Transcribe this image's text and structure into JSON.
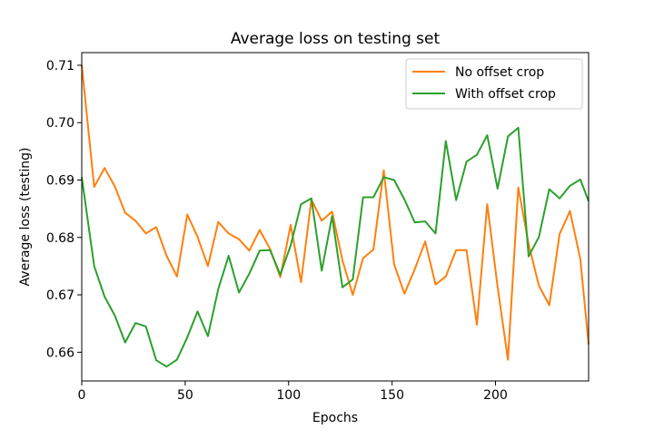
{
  "chart_data": {
    "type": "line",
    "title": "Average loss on testing set",
    "xlabel": "Epochs",
    "ylabel": "Average loss (testing)",
    "xlim": [
      0,
      245
    ],
    "ylim": [
      0.655,
      0.7122
    ],
    "xticks": [
      0,
      50,
      100,
      150,
      200
    ],
    "xtick_labels": [
      "0",
      "50",
      "100",
      "150",
      "200"
    ],
    "yticks": [
      0.66,
      0.67,
      0.68,
      0.69,
      0.7,
      0.71
    ],
    "ytick_labels": [
      "0.66",
      "0.67",
      "0.68",
      "0.69",
      "0.70",
      "0.71"
    ],
    "grid": false,
    "legend_position": "top-right",
    "x": [
      0,
      6,
      11,
      16,
      21,
      26,
      31,
      36,
      41,
      46,
      51,
      56,
      61,
      66,
      71,
      76,
      81,
      86,
      91,
      96,
      101,
      106,
      111,
      116,
      121,
      126,
      131,
      136,
      141,
      146,
      151,
      156,
      161,
      166,
      171,
      176,
      181,
      186,
      191,
      196,
      201,
      206,
      211,
      216,
      221,
      226,
      231,
      236,
      241,
      245
    ],
    "series": [
      {
        "name": "No offset crop",
        "color": "#ff7f0e",
        "values": [
          0.71,
          0.6888,
          0.6921,
          0.6889,
          0.6843,
          0.6829,
          0.6807,
          0.6818,
          0.6768,
          0.6732,
          0.684,
          0.6801,
          0.675,
          0.6827,
          0.6807,
          0.6797,
          0.6777,
          0.6813,
          0.678,
          0.6731,
          0.6822,
          0.6722,
          0.6866,
          0.6829,
          0.6845,
          0.676,
          0.67,
          0.6764,
          0.6779,
          0.6917,
          0.6753,
          0.6702,
          0.6745,
          0.6793,
          0.6718,
          0.6732,
          0.6778,
          0.6778,
          0.6648,
          0.6858,
          0.6714,
          0.6587,
          0.6887,
          0.6788,
          0.6716,
          0.6682,
          0.6806,
          0.6846,
          0.6762,
          0.6614
        ]
      },
      {
        "name": "With offset crop",
        "color": "#2ca02c",
        "values": [
          0.6905,
          0.675,
          0.6697,
          0.6664,
          0.6617,
          0.6651,
          0.6645,
          0.6586,
          0.6575,
          0.6587,
          0.6626,
          0.6671,
          0.6628,
          0.671,
          0.6768,
          0.6704,
          0.6737,
          0.6777,
          0.6778,
          0.6735,
          0.6786,
          0.6858,
          0.6868,
          0.6742,
          0.6837,
          0.6713,
          0.6727,
          0.687,
          0.687,
          0.6905,
          0.69,
          0.6866,
          0.6826,
          0.6828,
          0.6807,
          0.6968,
          0.6865,
          0.6932,
          0.6944,
          0.6978,
          0.6885,
          0.6976,
          0.6991,
          0.6767,
          0.6801,
          0.6884,
          0.6868,
          0.689,
          0.6901,
          0.6863
        ]
      }
    ]
  }
}
